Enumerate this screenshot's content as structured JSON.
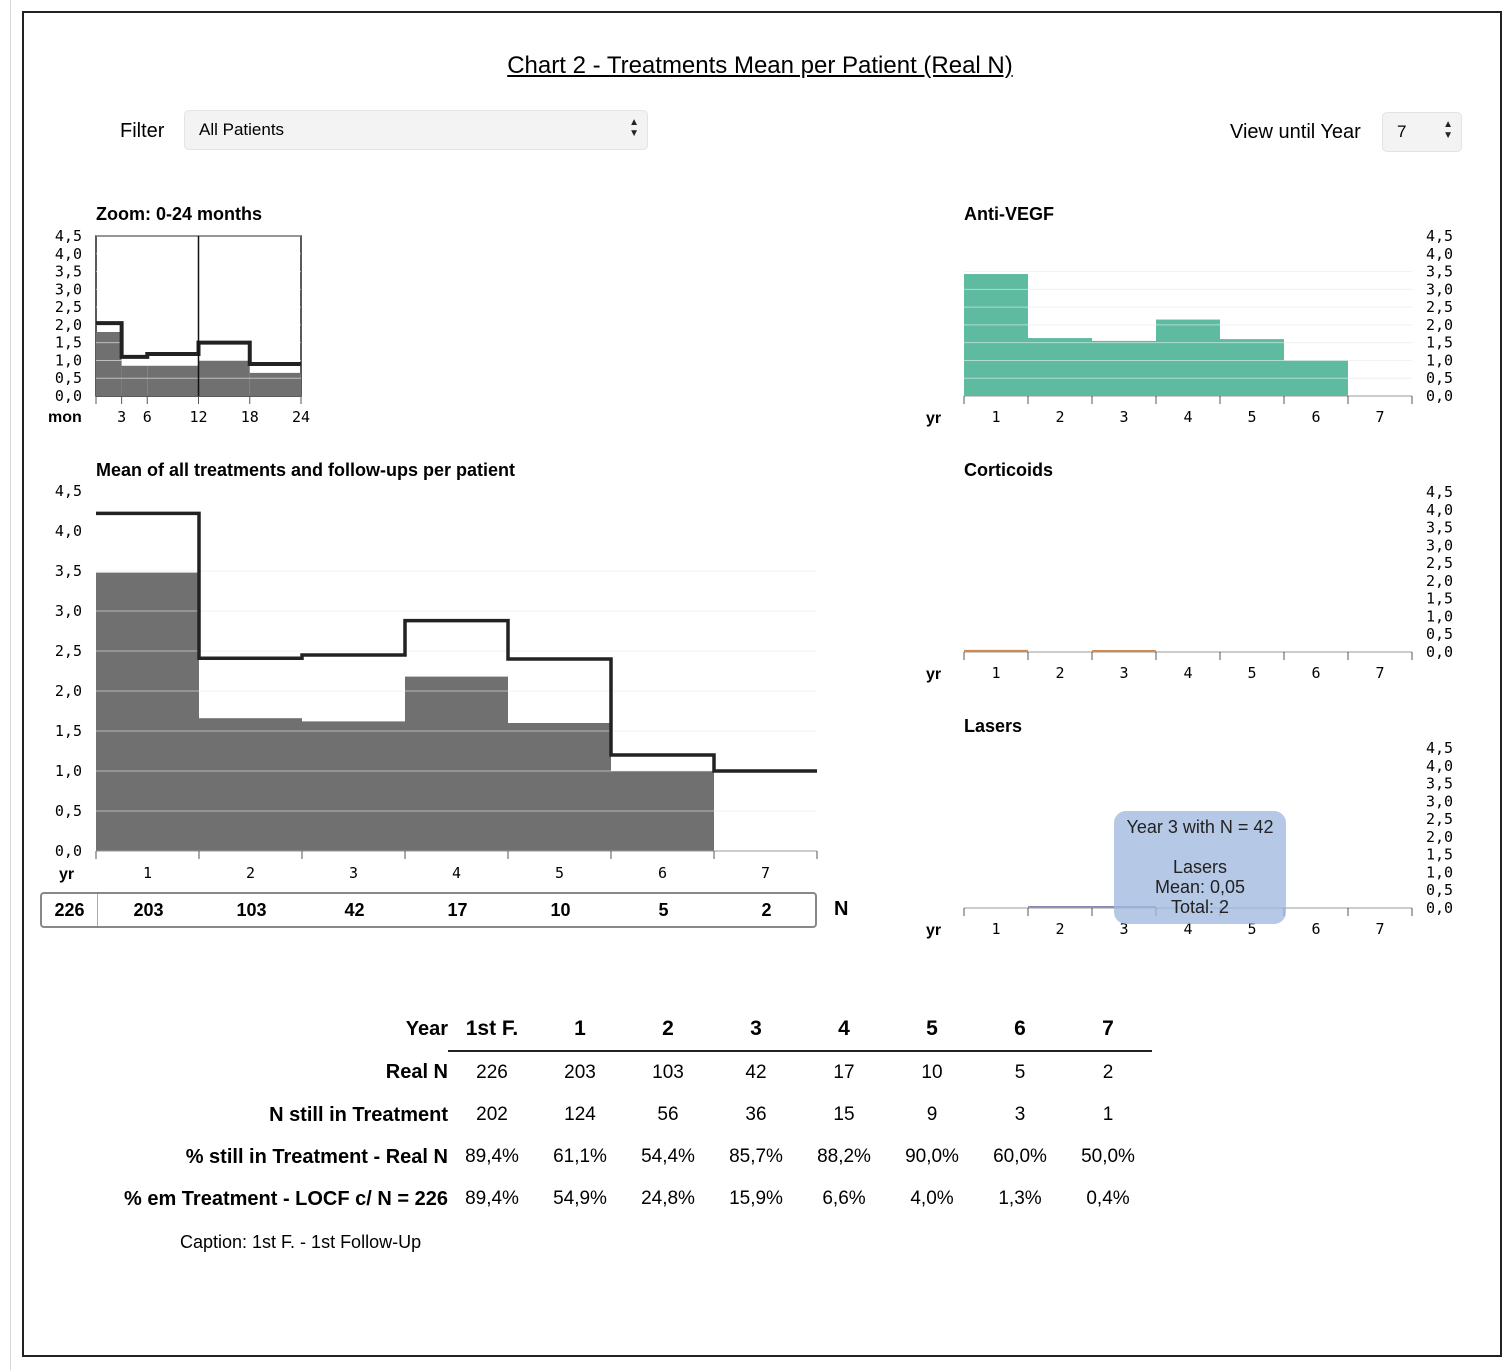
{
  "title": "Chart 2 - Treatments Mean per Patient (Real N)",
  "filter": {
    "label": "Filter",
    "value": "All Patients"
  },
  "view_until": {
    "label": "View until Year",
    "value": "7"
  },
  "colors": {
    "treatment_bar": "#707070",
    "mean_line": "#222222",
    "anti_vegf": "#5fbba0",
    "corticoids": "#d08a50",
    "lasers": "#8a8ab8",
    "tooltip_bg": "#a0b9de"
  },
  "n_row": {
    "values": [
      "226",
      "203",
      "103",
      "42",
      "17",
      "10",
      "5",
      "2"
    ],
    "label": "N"
  },
  "tooltip": {
    "line1": "Year 3 with N = 42",
    "line2": "Lasers",
    "line3": "Mean: 0,05",
    "line4": "Total: 2"
  },
  "table": {
    "header_label": "Year",
    "columns": [
      "1st F.",
      "1",
      "2",
      "3",
      "4",
      "5",
      "6",
      "7"
    ],
    "rows": [
      {
        "label": "Real N",
        "values": [
          "226",
          "203",
          "103",
          "42",
          "17",
          "10",
          "5",
          "2"
        ]
      },
      {
        "label": "N still in Treatment",
        "values": [
          "202",
          "124",
          "56",
          "36",
          "15",
          "9",
          "3",
          "1"
        ]
      },
      {
        "label": "% still in Treatment - Real N",
        "values": [
          "89,4%",
          "61,1%",
          "54,4%",
          "85,7%",
          "88,2%",
          "90,0%",
          "60,0%",
          "50,0%"
        ]
      },
      {
        "label": "% em Treatment - LOCF c/ N = 226",
        "values": [
          "89,4%",
          "54,9%",
          "24,8%",
          "15,9%",
          "6,6%",
          "4,0%",
          "1,3%",
          "0,4%"
        ]
      }
    ],
    "caption": "Caption: 1st F. - 1st Follow-Up"
  },
  "chart_data": [
    {
      "id": "zoom",
      "type": "bar",
      "title": "Zoom: 0-24 months",
      "xlabel": "mon",
      "x_ticks": [
        "3",
        "6",
        "12",
        "18",
        "24"
      ],
      "y_ticks": [
        "0,0",
        "0,5",
        "1,0",
        "1,5",
        "2,0",
        "2,5",
        "3,0",
        "3,5",
        "4,0",
        "4,5"
      ],
      "ylim": [
        0,
        4.5
      ],
      "bins": [
        [
          0,
          3
        ],
        [
          3,
          6
        ],
        [
          6,
          12
        ],
        [
          12,
          18
        ],
        [
          18,
          24
        ]
      ],
      "bar_values": [
        1.8,
        0.85,
        0.85,
        1.0,
        0.65
      ],
      "line_values": [
        2.05,
        1.1,
        1.18,
        1.5,
        0.9
      ],
      "markers": [
        12
      ]
    },
    {
      "id": "main",
      "type": "bar",
      "title": "Mean of all treatments and follow-ups per patient",
      "xlabel": "yr",
      "categories": [
        "1",
        "2",
        "3",
        "4",
        "5",
        "6",
        "7"
      ],
      "y_ticks": [
        "0,0",
        "0,5",
        "1,0",
        "1,5",
        "2,0",
        "2,5",
        "3,0",
        "3,5",
        "4,0",
        "4,5"
      ],
      "ylim": [
        0,
        4.5
      ],
      "series": [
        {
          "values": [
            3.48,
            1.66,
            1.62,
            2.18,
            1.6,
            1.0,
            0.0
          ]
        },
        {
          "values": [
            4.22,
            2.41,
            2.45,
            2.88,
            2.4,
            1.2,
            1.0
          ]
        }
      ]
    },
    {
      "id": "antivegf",
      "type": "bar",
      "title": "Anti-VEGF",
      "xlabel": "yr",
      "categories": [
        "1",
        "2",
        "3",
        "4",
        "5",
        "6",
        "7"
      ],
      "y_ticks": [
        "0,0",
        "0,5",
        "1,0",
        "1,5",
        "2,0",
        "2,5",
        "3,0",
        "3,5",
        "4,0",
        "4,5"
      ],
      "ylim": [
        0,
        4.5
      ],
      "values": [
        3.43,
        1.63,
        1.55,
        2.15,
        1.6,
        1.0,
        0.0
      ]
    },
    {
      "id": "corticoids",
      "type": "bar",
      "title": "Corticoids",
      "xlabel": "yr",
      "categories": [
        "1",
        "2",
        "3",
        "4",
        "5",
        "6",
        "7"
      ],
      "y_ticks": [
        "0,0",
        "0,5",
        "1,0",
        "1,5",
        "2,0",
        "2,5",
        "3,0",
        "3,5",
        "4,0",
        "4,5"
      ],
      "ylim": [
        0,
        4.5
      ],
      "values": [
        0.06,
        0.0,
        0.02,
        0.0,
        0.0,
        0.0,
        0.0
      ]
    },
    {
      "id": "lasers",
      "type": "bar",
      "title": "Lasers",
      "xlabel": "yr",
      "categories": [
        "1",
        "2",
        "3",
        "4",
        "5",
        "6",
        "7"
      ],
      "y_ticks": [
        "0,0",
        "0,5",
        "1,0",
        "1,5",
        "2,0",
        "2,5",
        "3,0",
        "3,5",
        "4,0",
        "4,5"
      ],
      "ylim": [
        0,
        4.5
      ],
      "values": [
        0.0,
        0.02,
        0.05,
        0.0,
        0.0,
        0.0,
        0.0
      ]
    }
  ]
}
